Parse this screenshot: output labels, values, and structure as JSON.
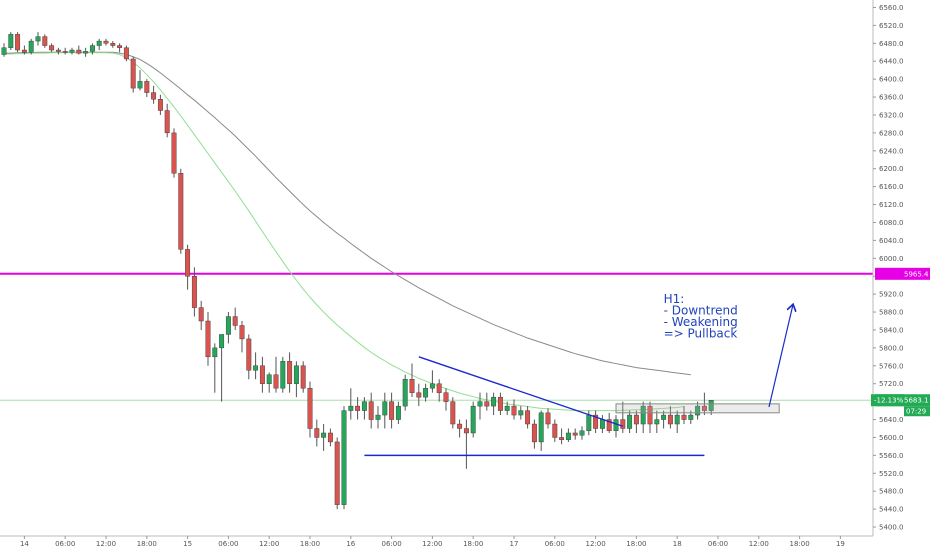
{
  "chart_data": {
    "type": "candlestick",
    "title": "",
    "xlabel": "",
    "ylabel": "",
    "ylim": [
      5380,
      6570
    ],
    "grid": false,
    "y_ticks": [
      5400,
      5440,
      5480,
      5520,
      5560,
      5600,
      5640,
      5680,
      5720,
      5760,
      5800,
      5840,
      5880,
      5920,
      5960,
      6000,
      6040,
      6080,
      6120,
      6160,
      6200,
      6240,
      6280,
      6320,
      6360,
      6400,
      6440,
      6480,
      6520,
      6560
    ],
    "y_tick_labels": [
      "5400.0",
      "5440.0",
      "5480.0",
      "5520.0",
      "5560.0",
      "5600.0",
      "5640.0",
      "5680.0",
      "5720.0",
      "5760.0",
      "5800.0",
      "5840.0",
      "5880.0",
      "5920.0",
      "5960.0",
      "6000.0",
      "6040.0",
      "6080.0",
      "6120.0",
      "6160.0",
      "6200.0",
      "6240.0",
      "6280.0",
      "6320.0",
      "6360.0",
      "6400.0",
      "6440.0",
      "6480.0",
      "6520.0",
      "6560.0"
    ],
    "x_ticks": [
      {
        "index": 3,
        "label": "14"
      },
      {
        "index": 9,
        "label": "06:00"
      },
      {
        "index": 15,
        "label": "12:00"
      },
      {
        "index": 21,
        "label": "18:00"
      },
      {
        "index": 27,
        "label": "15"
      },
      {
        "index": 33,
        "label": "06:00"
      },
      {
        "index": 39,
        "label": "12:00"
      },
      {
        "index": 45,
        "label": "18:00"
      },
      {
        "index": 51,
        "label": "16"
      },
      {
        "index": 57,
        "label": "06:00"
      },
      {
        "index": 63,
        "label": "12:00"
      },
      {
        "index": 69,
        "label": "18:00"
      },
      {
        "index": 75,
        "label": "17"
      },
      {
        "index": 81,
        "label": "06:00"
      },
      {
        "index": 87,
        "label": "12:00"
      },
      {
        "index": 93,
        "label": "18:00"
      },
      {
        "index": 99,
        "label": "18"
      },
      {
        "index": 105,
        "label": "06:00"
      },
      {
        "index": 111,
        "label": "12:00"
      },
      {
        "index": 117,
        "label": "18:00"
      },
      {
        "index": 123,
        "label": "19"
      }
    ],
    "candles": [
      [
        6455,
        6480,
        6450,
        6470
      ],
      [
        6470,
        6505,
        6465,
        6500
      ],
      [
        6500,
        6505,
        6460,
        6465
      ],
      [
        6465,
        6475,
        6455,
        6460
      ],
      [
        6460,
        6490,
        6455,
        6485
      ],
      [
        6485,
        6505,
        6475,
        6495
      ],
      [
        6495,
        6500,
        6470,
        6475
      ],
      [
        6475,
        6480,
        6460,
        6465
      ],
      [
        6465,
        6470,
        6455,
        6462
      ],
      [
        6462,
        6470,
        6455,
        6460
      ],
      [
        6460,
        6470,
        6455,
        6465
      ],
      [
        6465,
        6475,
        6455,
        6458
      ],
      [
        6458,
        6470,
        6450,
        6462
      ],
      [
        6462,
        6480,
        6455,
        6475
      ],
      [
        6475,
        6490,
        6465,
        6485
      ],
      [
        6485,
        6490,
        6475,
        6480
      ],
      [
        6480,
        6485,
        6470,
        6475
      ],
      [
        6475,
        6480,
        6460,
        6470
      ],
      [
        6470,
        6475,
        6440,
        6445
      ],
      [
        6445,
        6450,
        6370,
        6380
      ],
      [
        6380,
        6420,
        6375,
        6395
      ],
      [
        6395,
        6400,
        6360,
        6370
      ],
      [
        6370,
        6385,
        6345,
        6355
      ],
      [
        6355,
        6365,
        6320,
        6330
      ],
      [
        6330,
        6345,
        6270,
        6280
      ],
      [
        6280,
        6290,
        6180,
        6190
      ],
      [
        6190,
        6200,
        6010,
        6020
      ],
      [
        6020,
        6030,
        5930,
        5960
      ],
      [
        5960,
        5980,
        5870,
        5890
      ],
      [
        5890,
        5905,
        5840,
        5860
      ],
      [
        5860,
        5880,
        5760,
        5780
      ],
      [
        5780,
        5810,
        5700,
        5800
      ],
      [
        5800,
        5830,
        5680,
        5830
      ],
      [
        5830,
        5880,
        5810,
        5870
      ],
      [
        5870,
        5890,
        5840,
        5850
      ],
      [
        5850,
        5860,
        5790,
        5820
      ],
      [
        5820,
        5830,
        5730,
        5750
      ],
      [
        5750,
        5790,
        5730,
        5760
      ],
      [
        5760,
        5780,
        5700,
        5720
      ],
      [
        5720,
        5745,
        5700,
        5740
      ],
      [
        5740,
        5780,
        5700,
        5710
      ],
      [
        5710,
        5780,
        5700,
        5770
      ],
      [
        5770,
        5790,
        5700,
        5720
      ],
      [
        5720,
        5770,
        5690,
        5760
      ],
      [
        5760,
        5770,
        5700,
        5710
      ],
      [
        5710,
        5725,
        5600,
        5620
      ],
      [
        5620,
        5640,
        5580,
        5600
      ],
      [
        5600,
        5630,
        5570,
        5610
      ],
      [
        5610,
        5620,
        5580,
        5590
      ],
      [
        5590,
        5600,
        5440,
        5450
      ],
      [
        5450,
        5670,
        5440,
        5660
      ],
      [
        5660,
        5710,
        5640,
        5670
      ],
      [
        5670,
        5690,
        5640,
        5660
      ],
      [
        5660,
        5690,
        5640,
        5680
      ],
      [
        5680,
        5700,
        5620,
        5640
      ],
      [
        5640,
        5670,
        5620,
        5650
      ],
      [
        5650,
        5700,
        5620,
        5680
      ],
      [
        5680,
        5700,
        5620,
        5640
      ],
      [
        5640,
        5680,
        5630,
        5670
      ],
      [
        5670,
        5740,
        5660,
        5730
      ],
      [
        5730,
        5765,
        5690,
        5700
      ],
      [
        5700,
        5720,
        5670,
        5690
      ],
      [
        5690,
        5720,
        5680,
        5710
      ],
      [
        5710,
        5750,
        5700,
        5720
      ],
      [
        5720,
        5730,
        5680,
        5700
      ],
      [
        5700,
        5710,
        5660,
        5680
      ],
      [
        5680,
        5690,
        5620,
        5630
      ],
      [
        5630,
        5640,
        5600,
        5620
      ],
      [
        5620,
        5640,
        5530,
        5610
      ],
      [
        5610,
        5680,
        5600,
        5670
      ],
      [
        5670,
        5700,
        5640,
        5680
      ],
      [
        5680,
        5700,
        5660,
        5670
      ],
      [
        5670,
        5700,
        5650,
        5690
      ],
      [
        5690,
        5700,
        5650,
        5660
      ],
      [
        5660,
        5680,
        5650,
        5670
      ],
      [
        5670,
        5685,
        5640,
        5650
      ],
      [
        5650,
        5670,
        5640,
        5660
      ],
      [
        5660,
        5670,
        5620,
        5630
      ],
      [
        5630,
        5640,
        5575,
        5590
      ],
      [
        5590,
        5660,
        5570,
        5655
      ],
      [
        5655,
        5665,
        5620,
        5630
      ],
      [
        5630,
        5640,
        5590,
        5600
      ],
      [
        5600,
        5620,
        5585,
        5595
      ],
      [
        5595,
        5620,
        5590,
        5610
      ],
      [
        5610,
        5620,
        5595,
        5605
      ],
      [
        5605,
        5625,
        5595,
        5615
      ],
      [
        5615,
        5660,
        5605,
        5650
      ],
      [
        5650,
        5660,
        5610,
        5620
      ],
      [
        5620,
        5650,
        5610,
        5640
      ],
      [
        5640,
        5655,
        5610,
        5615
      ],
      [
        5615,
        5650,
        5600,
        5640
      ],
      [
        5640,
        5680,
        5610,
        5620
      ],
      [
        5620,
        5660,
        5610,
        5650
      ],
      [
        5650,
        5660,
        5610,
        5630
      ],
      [
        5630,
        5680,
        5610,
        5670
      ],
      [
        5670,
        5680,
        5610,
        5630
      ],
      [
        5630,
        5660,
        5610,
        5640
      ],
      [
        5640,
        5660,
        5620,
        5650
      ],
      [
        5650,
        5670,
        5620,
        5630
      ],
      [
        5630,
        5660,
        5610,
        5650
      ],
      [
        5650,
        5670,
        5630,
        5640
      ],
      [
        5640,
        5660,
        5630,
        5650
      ],
      [
        5650,
        5680,
        5640,
        5670
      ],
      [
        5670,
        5700,
        5650,
        5660
      ],
      [
        5660,
        5683,
        5650,
        5683
      ]
    ],
    "moving_averages": [
      {
        "color": "#8a8a8a",
        "values": [
          6458,
          6458,
          6459,
          6459,
          6459,
          6460,
          6460,
          6460,
          6460,
          6460,
          6460,
          6460,
          6460,
          6460,
          6460,
          6460,
          6460,
          6458,
          6455,
          6450,
          6444,
          6435,
          6425,
          6414,
          6402,
          6390,
          6378,
          6365,
          6353,
          6340,
          6327,
          6314,
          6300,
          6287,
          6273,
          6258,
          6243,
          6228,
          6212,
          6196,
          6180,
          6165,
          6150,
          6135,
          6120,
          6106,
          6093,
          6080,
          6068,
          6056,
          6045,
          6033,
          6022,
          6011,
          6000,
          5990,
          5980,
          5970,
          5961,
          5952,
          5943,
          5934,
          5926,
          5918,
          5910,
          5902,
          5894,
          5887,
          5880,
          5873,
          5866,
          5859,
          5852,
          5846,
          5840,
          5834,
          5828,
          5822,
          5817,
          5812,
          5807,
          5802,
          5797,
          5792,
          5787,
          5783,
          5779,
          5775,
          5771,
          5768,
          5765,
          5762,
          5759,
          5756,
          5754,
          5752,
          5750,
          5748,
          5746,
          5744,
          5742,
          5740
        ]
      },
      {
        "color": "#90e090",
        "values": [
          6456,
          6456,
          6457,
          6457,
          6458,
          6458,
          6458,
          6459,
          6459,
          6459,
          6459,
          6459,
          6459,
          6459,
          6459,
          6459,
          6458,
          6455,
          6448,
          6438,
          6425,
          6410,
          6394,
          6376,
          6357,
          6338,
          6318,
          6297,
          6276,
          6255,
          6234,
          6213,
          6192,
          6171,
          6150,
          6128,
          6106,
          6083,
          6060,
          6037,
          6015,
          5993,
          5971,
          5951,
          5931,
          5913,
          5896,
          5880,
          5865,
          5851,
          5838,
          5825,
          5813,
          5801,
          5790,
          5780,
          5771,
          5762,
          5754,
          5746,
          5739,
          5732,
          5726,
          5720,
          5714,
          5709,
          5704,
          5699,
          5695,
          5691,
          5687,
          5684,
          5681,
          5678,
          5675,
          5673,
          5671,
          5669,
          5667,
          5665,
          5664,
          5663,
          5662,
          5661,
          5660,
          5660,
          5660,
          5660,
          5660,
          5660,
          5660,
          5661,
          5661,
          5662,
          5662,
          5663,
          5664,
          5665,
          5666,
          5667,
          5669
        ]
      }
    ],
    "horizontal_lines": [
      {
        "value": 5965.4,
        "color": "#e600e6",
        "label": "5965.4"
      },
      {
        "value": 5683.1,
        "color": "#a8e0a8",
        "label": "5683.1"
      }
    ],
    "change_label": "-12.13%",
    "countdown_label": "07:29",
    "trendlines": [
      {
        "from": [
          61,
          5780
        ],
        "to": [
          91,
          5625
        ]
      },
      {
        "from": [
          53,
          5560
        ],
        "to": [
          103,
          5560
        ]
      }
    ],
    "rectangle": {
      "x0": 90,
      "x1": 114,
      "y0": 5655,
      "y1": 5675
    },
    "arrow": {
      "from": [
        112.5,
        5668
      ],
      "to": [
        116,
        5895
      ]
    },
    "annotation": [
      "H1:",
      "- Downtrend",
      "- Weakening",
      "=> Pullback"
    ],
    "annotation_anchor": {
      "x": 97,
      "y": 5900
    }
  }
}
